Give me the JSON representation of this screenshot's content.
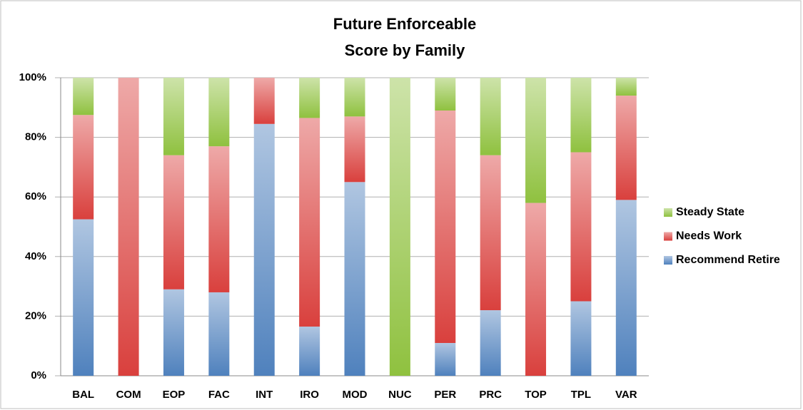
{
  "chart_data": {
    "type": "stacked_bar",
    "title": [
      "Future Enforceable",
      "Score by Family"
    ],
    "categories": [
      "BAL",
      "COM",
      "EOP",
      "FAC",
      "INT",
      "IRO",
      "MOD",
      "NUC",
      "PER",
      "PRC",
      "TOP",
      "TPL",
      "VAR"
    ],
    "series": [
      {
        "name": "Recommend Retire",
        "color": "#4f81bd",
        "values": [
          52.5,
          0,
          29,
          28,
          84.5,
          16.5,
          65,
          0,
          11,
          22,
          0,
          25,
          59
        ]
      },
      {
        "name": "Needs Work",
        "color": "#d9403d",
        "values": [
          35,
          100,
          45,
          49,
          15.5,
          70,
          22,
          0,
          78,
          52,
          58,
          50,
          35
        ]
      },
      {
        "name": "Steady State",
        "color": "#8fc13f",
        "values": [
          12.5,
          0,
          26,
          23,
          0,
          13.5,
          13,
          100,
          11,
          26,
          42,
          25,
          6
        ]
      }
    ],
    "ylim": [
      0,
      100
    ],
    "yticks": [
      {
        "value": 0,
        "label": "0%"
      },
      {
        "value": 20,
        "label": "20%"
      },
      {
        "value": 40,
        "label": "40%"
      },
      {
        "value": 60,
        "label": "60%"
      },
      {
        "value": 80,
        "label": "80%"
      },
      {
        "value": 100,
        "label": "100%"
      }
    ],
    "grid": true,
    "legend": "right"
  }
}
